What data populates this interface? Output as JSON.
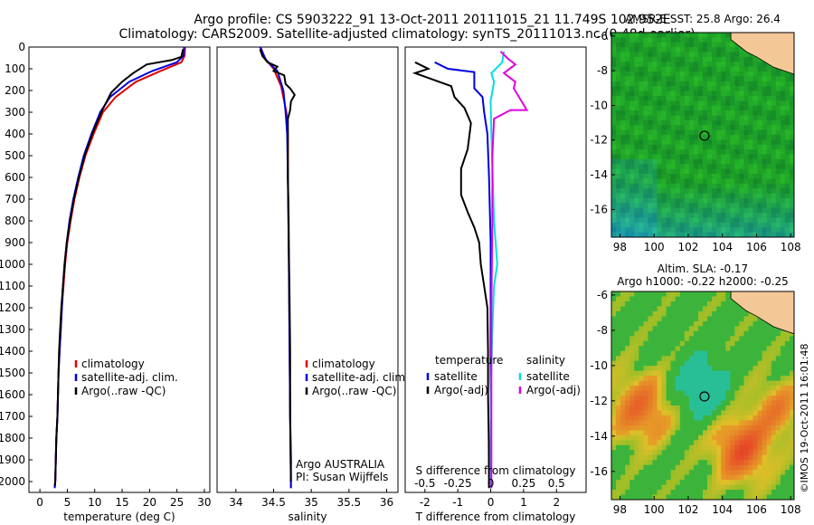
{
  "title_line1": "Argo profile: CS 5903222_91 13-Oct-2011 20111015_21 11.749S 102.952E",
  "title_line2": "Climatology: CARS2009. Satellite-adjusted climatology: synTS_20111013.nc (0.48d earlier)",
  "side_label": "©IMOS 19-Oct-2011 16:01:48",
  "colors": {
    "climatology": "#e00000",
    "satellite": "#0000e0",
    "argo": "#000000",
    "cyan": "#00e0e0",
    "magenta": "#e000e0"
  },
  "chart_data": [
    {
      "type": "line",
      "xlabel": "temperature (deg C)",
      "ylabel": "",
      "xlim": [
        -2,
        31
      ],
      "ylim": [
        2050,
        0
      ],
      "xticks": [
        0,
        5,
        10,
        15,
        20,
        25,
        30
      ],
      "yticks": [
        0,
        100,
        200,
        300,
        400,
        500,
        600,
        700,
        800,
        900,
        1000,
        1100,
        1200,
        1300,
        1400,
        1500,
        1600,
        1700,
        1800,
        1900,
        2000
      ],
      "legend": [
        "climatology",
        "satellite-adj. clim.",
        "Argo(..raw -QC)"
      ],
      "series": [
        {
          "name": "climatology",
          "color": "climatology",
          "points": [
            [
              26.5,
              0
            ],
            [
              26.4,
              40
            ],
            [
              25.8,
              70
            ],
            [
              22,
              110
            ],
            [
              17.5,
              160
            ],
            [
              13.8,
              230
            ],
            [
              11.5,
              300
            ],
            [
              9.8,
              400
            ],
            [
              8.3,
              500
            ],
            [
              7.2,
              600
            ],
            [
              6.3,
              700
            ],
            [
              5.6,
              800
            ],
            [
              5,
              900
            ],
            [
              4.6,
              1000
            ],
            [
              4.3,
              1100
            ],
            [
              4,
              1200
            ],
            [
              3.8,
              1300
            ],
            [
              3.6,
              1400
            ],
            [
              3.4,
              1500
            ],
            [
              3.3,
              1600
            ],
            [
              3.2,
              1700
            ],
            [
              3,
              1800
            ],
            [
              2.9,
              1900
            ],
            [
              2.8,
              2000
            ],
            [
              2.7,
              2030
            ]
          ]
        },
        {
          "name": "satellite-adj. clim.",
          "color": "satellite",
          "points": [
            [
              26.3,
              0
            ],
            [
              26.2,
              40
            ],
            [
              25,
              70
            ],
            [
              20.5,
              110
            ],
            [
              16.3,
              160
            ],
            [
              12.8,
              230
            ],
            [
              11,
              300
            ],
            [
              9.4,
              400
            ],
            [
              8,
              500
            ],
            [
              7,
              600
            ],
            [
              6.1,
              700
            ],
            [
              5.4,
              800
            ],
            [
              4.9,
              900
            ],
            [
              4.5,
              1000
            ],
            [
              4.2,
              1100
            ],
            [
              4,
              1200
            ],
            [
              3.8,
              1300
            ],
            [
              3.6,
              1400
            ],
            [
              3.4,
              1500
            ],
            [
              3.3,
              1600
            ],
            [
              3.2,
              1700
            ],
            [
              3,
              1800
            ],
            [
              2.9,
              1900
            ],
            [
              2.8,
              2000
            ],
            [
              2.7,
              2030
            ]
          ]
        },
        {
          "name": "Argo(..raw -QC)",
          "color": "argo",
          "points": [
            [
              26.1,
              10
            ],
            [
              25.8,
              45
            ],
            [
              24,
              60
            ],
            [
              19.5,
              80
            ],
            [
              17,
              120
            ],
            [
              15,
              160
            ],
            [
              13,
              210
            ],
            [
              11.4,
              290
            ],
            [
              9.7,
              390
            ],
            [
              8.3,
              490
            ],
            [
              7.1,
              600
            ],
            [
              6.2,
              700
            ],
            [
              5.5,
              800
            ],
            [
              4.9,
              900
            ],
            [
              4.5,
              1000
            ],
            [
              4.2,
              1100
            ],
            [
              3.9,
              1200
            ],
            [
              3.7,
              1300
            ],
            [
              3.5,
              1400
            ],
            [
              3.4,
              1500
            ],
            [
              3.3,
              1600
            ],
            [
              3.2,
              1700
            ],
            [
              3,
              1800
            ],
            [
              2.9,
              1900
            ],
            [
              2.8,
              2000
            ],
            [
              2.7,
              2020
            ]
          ]
        }
      ]
    },
    {
      "type": "line",
      "xlabel": "salinity",
      "ylabel": "",
      "xlim": [
        33.75,
        36.15
      ],
      "ylim": [
        2050,
        0
      ],
      "xticks": [
        34,
        34.5,
        35,
        35.5,
        36
      ],
      "legend": [
        "climatology",
        "satellite-adj. clim.",
        "Argo(..raw -QC)"
      ],
      "annotation": [
        "Argo AUSTRALIA",
        "PI: Susan Wijffels"
      ],
      "series": [
        {
          "name": "climatology",
          "color": "climatology",
          "points": [
            [
              34.33,
              0
            ],
            [
              34.38,
              50
            ],
            [
              34.5,
              100
            ],
            [
              34.6,
              180
            ],
            [
              34.67,
              300
            ],
            [
              34.69,
              400
            ],
            [
              34.69,
              600
            ],
            [
              34.7,
              900
            ],
            [
              34.71,
              1300
            ],
            [
              34.72,
              1700
            ],
            [
              34.73,
              2030
            ]
          ]
        },
        {
          "name": "satellite-adj. clim.",
          "color": "satellite",
          "points": [
            [
              34.32,
              0
            ],
            [
              34.4,
              60
            ],
            [
              34.55,
              110
            ],
            [
              34.63,
              200
            ],
            [
              34.66,
              300
            ],
            [
              34.68,
              400
            ],
            [
              34.69,
              600
            ],
            [
              34.7,
              900
            ],
            [
              34.71,
              1300
            ],
            [
              34.72,
              1700
            ],
            [
              34.73,
              2030
            ]
          ]
        },
        {
          "name": "Argo(..raw -QC)",
          "color": "argo",
          "points": [
            [
              34.32,
              10
            ],
            [
              34.35,
              40
            ],
            [
              34.42,
              70
            ],
            [
              34.55,
              90
            ],
            [
              34.5,
              110
            ],
            [
              34.64,
              130
            ],
            [
              34.66,
              170
            ],
            [
              34.72,
              190
            ],
            [
              34.78,
              220
            ],
            [
              34.73,
              250
            ],
            [
              34.72,
              290
            ],
            [
              34.69,
              330
            ],
            [
              34.69,
              450
            ],
            [
              34.69,
              600
            ],
            [
              34.7,
              800
            ],
            [
              34.7,
              900
            ],
            [
              34.71,
              1100
            ],
            [
              34.72,
              1400
            ],
            [
              34.72,
              1700
            ],
            [
              34.73,
              1900
            ],
            [
              34.73,
              2000
            ]
          ]
        }
      ]
    },
    {
      "type": "line",
      "xlabel": "T difference from climatology",
      "xlim": [
        -2.6,
        2.9
      ],
      "ylim": [
        2050,
        0
      ],
      "xticks": [
        -2,
        -1,
        0,
        1,
        2
      ],
      "xticklabels": [
        "-2",
        "-1",
        "0",
        "1",
        "2"
      ],
      "top_xlabel": "S difference from climatology",
      "top_xticks": [
        -0.5,
        -0.25,
        0,
        0.25,
        0.5
      ],
      "top_xticklabels": [
        "-0.5",
        "-0.25",
        "0",
        "0.25",
        "0.5"
      ],
      "legend_left_title": "temperature",
      "legend_right_title": "salinity",
      "legend_left": [
        "satellite",
        "Argo(-adj)"
      ],
      "legend_right": [
        "satellite",
        "Argo(-adj)"
      ],
      "series": [
        {
          "name": "satellite",
          "color": "satellite",
          "points": [
            [
              -1.7,
              70
            ],
            [
              -1.3,
              100
            ],
            [
              -0.5,
              115
            ],
            [
              -0.5,
              140
            ],
            [
              -0.5,
              190
            ],
            [
              -0.25,
              230
            ],
            [
              -0.2,
              300
            ],
            [
              -0.1,
              400
            ],
            [
              -0.05,
              600
            ],
            [
              0,
              900
            ],
            [
              0,
              2030
            ]
          ]
        },
        {
          "name": "Argo(-adj)",
          "color": "argo",
          "points": [
            [
              -2.3,
              70
            ],
            [
              -1.9,
              100
            ],
            [
              -2.3,
              120
            ],
            [
              -1.2,
              180
            ],
            [
              -1.1,
              230
            ],
            [
              -0.8,
              280
            ],
            [
              -0.6,
              350
            ],
            [
              -0.7,
              470
            ],
            [
              -0.9,
              560
            ],
            [
              -0.9,
              680
            ],
            [
              -0.7,
              760
            ],
            [
              -0.5,
              830
            ],
            [
              -0.35,
              900
            ],
            [
              -0.3,
              1000
            ],
            [
              -0.2,
              1100
            ],
            [
              -0.1,
              1200
            ],
            [
              -0.08,
              1400
            ],
            [
              -0.08,
              1600
            ],
            [
              -0.06,
              1800
            ],
            [
              -0.05,
              2030
            ]
          ]
        },
        {
          "name": "satellite S",
          "color": "cyan",
          "points": [
            [
              0.4,
              20
            ],
            [
              0.35,
              70
            ],
            [
              0.02,
              120
            ],
            [
              0.1,
              160
            ],
            [
              0,
              250
            ],
            [
              0.02,
              400
            ],
            [
              0.1,
              800
            ],
            [
              0.2,
              1000
            ],
            [
              0.1,
              1100
            ],
            [
              0.05,
              1300
            ],
            [
              0,
              1600
            ],
            [
              0,
              2030
            ]
          ]
        },
        {
          "name": "Argo S",
          "color": "magenta",
          "points": [
            [
              0.3,
              20
            ],
            [
              0.5,
              50
            ],
            [
              0.75,
              80
            ],
            [
              0.4,
              120
            ],
            [
              0.75,
              160
            ],
            [
              0.7,
              190
            ],
            [
              0.9,
              240
            ],
            [
              1.1,
              290
            ],
            [
              0.6,
              290
            ],
            [
              0.1,
              330
            ],
            [
              0.05,
              500
            ],
            [
              0.05,
              800
            ],
            [
              0.02,
              1200
            ],
            [
              0.02,
              2030
            ]
          ]
        }
      ]
    },
    {
      "type": "heatmap",
      "title": "AMSR-E SST: 25.8 Argo: 26.4",
      "xlim": [
        97.5,
        108.2
      ],
      "ylim": [
        -17.6,
        -5.8
      ],
      "xticks": [
        98,
        100,
        102,
        104,
        106,
        108
      ],
      "yticks": [
        -6,
        -8,
        -10,
        -12,
        -14,
        -16
      ],
      "marker": [
        102.95,
        -11.75
      ]
    },
    {
      "type": "heatmap",
      "title": "Altim. SLA: -0.17",
      "subtitle": "Argo h1000: -0.22 h2000: -0.25",
      "xlim": [
        97.5,
        108.2
      ],
      "ylim": [
        -17.6,
        -5.8
      ],
      "xticks": [
        98,
        100,
        102,
        104,
        106,
        108
      ],
      "yticks": [
        -6,
        -8,
        -10,
        -12,
        -14,
        -16
      ],
      "marker": [
        102.95,
        -11.75
      ]
    }
  ]
}
